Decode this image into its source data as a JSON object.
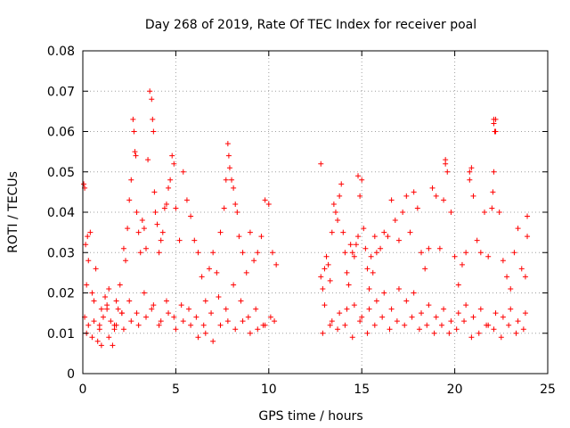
{
  "chart_data": {
    "type": "scatter",
    "title": "Day 268 of 2019, Rate Of TEC Index for receiver poal",
    "xlabel": "GPS time / hours",
    "ylabel": "ROTI / TECUs",
    "xlim": [
      0,
      25
    ],
    "ylim": [
      0,
      0.08
    ],
    "xticks": [
      "0",
      "5",
      "10",
      "15",
      "20",
      "25"
    ],
    "yticks": [
      "0",
      "0.01",
      "0.02",
      "0.03",
      "0.04",
      "0.05",
      "0.06",
      "0.07",
      "0.08"
    ],
    "grid": true,
    "marker": "plus",
    "color": "#ff0000",
    "series": [
      {
        "x": [
          0.05,
          0.1,
          0.15,
          0.2,
          0.25,
          0.3,
          0.4,
          0.5,
          0.6,
          0.7,
          0.8,
          0.9,
          1.0,
          1.1,
          1.2,
          1.3,
          1.4,
          1.5,
          1.6,
          1.7,
          1.8,
          1.9,
          2.0,
          2.1,
          2.2,
          2.3,
          2.4,
          2.5,
          2.6,
          2.7,
          2.75,
          2.8,
          2.85,
          2.9,
          3.0,
          3.1,
          3.2,
          3.3,
          3.4,
          3.5,
          3.6,
          3.7,
          3.75,
          3.8,
          3.85,
          3.9,
          4.0,
          4.1,
          4.2,
          4.3,
          4.4,
          4.5,
          4.6,
          4.7,
          4.8,
          4.9,
          5.0,
          5.2,
          5.4,
          5.6,
          5.8,
          6.0,
          6.2,
          6.4,
          6.6,
          6.8,
          7.0,
          7.2,
          7.4,
          7.6,
          7.7,
          7.8,
          7.85,
          7.9,
          8.0,
          8.1,
          8.2,
          8.3,
          8.4,
          8.6,
          8.8,
          9.0,
          9.2,
          9.4,
          9.6,
          9.8,
          10.0,
          10.2,
          10.4,
          0.1,
          0.3,
          0.5,
          0.9,
          1.3,
          1.7,
          2.1,
          2.5,
          2.9,
          3.3,
          3.7,
          4.1,
          4.5,
          4.9,
          5.3,
          5.7,
          6.1,
          6.5,
          6.9,
          7.3,
          7.7,
          8.1,
          8.5,
          8.9,
          9.3,
          9.7,
          10.1,
          0.2,
          0.6,
          1.0,
          1.4,
          1.8,
          2.2,
          2.6,
          3.0,
          3.4,
          3.8,
          4.2,
          4.6,
          5.0,
          5.4,
          5.8,
          6.2,
          6.6,
          7.0,
          7.4,
          7.8,
          8.2,
          8.6,
          9.0,
          9.4,
          9.8,
          10.3,
          12.8,
          12.9,
          13.0,
          13.1,
          13.2,
          13.3,
          13.4,
          13.5,
          13.6,
          13.7,
          13.8,
          13.9,
          14.0,
          14.1,
          14.2,
          14.3,
          14.4,
          14.5,
          14.6,
          14.7,
          14.8,
          14.9,
          15.0,
          15.1,
          15.2,
          15.3,
          15.4,
          15.5,
          15.6,
          15.7,
          15.8,
          16.0,
          16.2,
          16.4,
          16.6,
          16.8,
          17.0,
          17.2,
          17.4,
          17.6,
          17.8,
          18.0,
          18.2,
          18.4,
          18.6,
          18.8,
          19.0,
          19.2,
          19.4,
          19.5,
          19.6,
          19.8,
          20.0,
          20.2,
          20.4,
          20.6,
          20.8,
          20.9,
          21.0,
          21.2,
          21.4,
          21.6,
          21.8,
          22.0,
          22.05,
          22.1,
          22.15,
          22.2,
          22.4,
          22.6,
          22.8,
          23.0,
          23.2,
          23.4,
          23.6,
          23.8,
          23.9,
          13.0,
          13.4,
          13.8,
          14.2,
          14.6,
          15.0,
          15.4,
          15.8,
          16.2,
          16.6,
          17.0,
          17.4,
          17.8,
          18.2,
          18.6,
          19.0,
          19.4,
          19.8,
          20.2,
          20.6,
          21.0,
          21.4,
          21.8,
          22.2,
          22.6,
          23.0,
          23.4,
          23.8,
          12.9,
          13.3,
          13.7,
          14.1,
          14.5,
          14.9,
          15.3,
          15.7,
          16.1,
          16.5,
          16.9,
          17.3,
          17.7,
          18.1,
          18.5,
          18.9,
          19.3,
          19.7,
          20.1,
          20.5,
          20.9,
          21.3,
          21.7,
          22.1,
          22.5,
          22.9,
          23.3,
          23.7,
          12.8,
          14.8,
          19.5,
          20.8,
          22.1,
          22.1,
          22.2,
          23.9
        ],
        "y": [
          0.047,
          0.046,
          0.032,
          0.022,
          0.034,
          0.028,
          0.035,
          0.02,
          0.018,
          0.026,
          0.008,
          0.012,
          0.016,
          0.014,
          0.019,
          0.017,
          0.021,
          0.013,
          0.007,
          0.011,
          0.018,
          0.016,
          0.022,
          0.015,
          0.031,
          0.028,
          0.036,
          0.043,
          0.048,
          0.063,
          0.06,
          0.055,
          0.054,
          0.04,
          0.035,
          0.03,
          0.038,
          0.036,
          0.031,
          0.053,
          0.07,
          0.068,
          0.063,
          0.06,
          0.045,
          0.04,
          0.037,
          0.03,
          0.033,
          0.035,
          0.041,
          0.042,
          0.046,
          0.048,
          0.054,
          0.052,
          0.041,
          0.033,
          0.05,
          0.043,
          0.039,
          0.033,
          0.03,
          0.024,
          0.018,
          0.026,
          0.03,
          0.025,
          0.035,
          0.041,
          0.048,
          0.057,
          0.054,
          0.051,
          0.048,
          0.046,
          0.042,
          0.04,
          0.034,
          0.03,
          0.025,
          0.035,
          0.028,
          0.03,
          0.034,
          0.043,
          0.042,
          0.03,
          0.027,
          0.014,
          0.012,
          0.009,
          0.011,
          0.016,
          0.012,
          0.015,
          0.018,
          0.015,
          0.02,
          0.016,
          0.012,
          0.018,
          0.014,
          0.017,
          0.016,
          0.014,
          0.012,
          0.015,
          0.019,
          0.016,
          0.022,
          0.018,
          0.014,
          0.016,
          0.012,
          0.014,
          0.01,
          0.013,
          0.007,
          0.009,
          0.012,
          0.011,
          0.013,
          0.012,
          0.014,
          0.017,
          0.013,
          0.015,
          0.011,
          0.013,
          0.012,
          0.009,
          0.01,
          0.008,
          0.012,
          0.013,
          0.011,
          0.013,
          0.01,
          0.011,
          0.012,
          0.013,
          0.024,
          0.021,
          0.026,
          0.029,
          0.027,
          0.023,
          0.035,
          0.042,
          0.04,
          0.038,
          0.044,
          0.047,
          0.035,
          0.03,
          0.025,
          0.022,
          0.032,
          0.03,
          0.029,
          0.032,
          0.034,
          0.044,
          0.048,
          0.036,
          0.031,
          0.026,
          0.021,
          0.029,
          0.025,
          0.034,
          0.03,
          0.031,
          0.035,
          0.034,
          0.043,
          0.038,
          0.033,
          0.04,
          0.044,
          0.035,
          0.045,
          0.041,
          0.03,
          0.026,
          0.031,
          0.046,
          0.044,
          0.031,
          0.043,
          0.052,
          0.05,
          0.04,
          0.029,
          0.022,
          0.027,
          0.03,
          0.048,
          0.051,
          0.044,
          0.033,
          0.03,
          0.04,
          0.029,
          0.041,
          0.045,
          0.05,
          0.06,
          0.063,
          0.04,
          0.028,
          0.024,
          0.021,
          0.03,
          0.036,
          0.026,
          0.024,
          0.039,
          0.017,
          0.013,
          0.015,
          0.016,
          0.017,
          0.014,
          0.016,
          0.018,
          0.02,
          0.016,
          0.021,
          0.018,
          0.02,
          0.015,
          0.017,
          0.014,
          0.016,
          0.013,
          0.015,
          0.017,
          0.014,
          0.016,
          0.012,
          0.015,
          0.014,
          0.016,
          0.013,
          0.015,
          0.01,
          0.012,
          0.011,
          0.012,
          0.009,
          0.013,
          0.01,
          0.012,
          0.014,
          0.011,
          0.013,
          0.012,
          0.014,
          0.011,
          0.012,
          0.01,
          0.012,
          0.01,
          0.011,
          0.013,
          0.009,
          0.01,
          0.012,
          0.011,
          0.009,
          0.012,
          0.01,
          0.011,
          0.052,
          0.049,
          0.053,
          0.05,
          0.063,
          0.062,
          0.06,
          0.034
        ]
      }
    ]
  }
}
